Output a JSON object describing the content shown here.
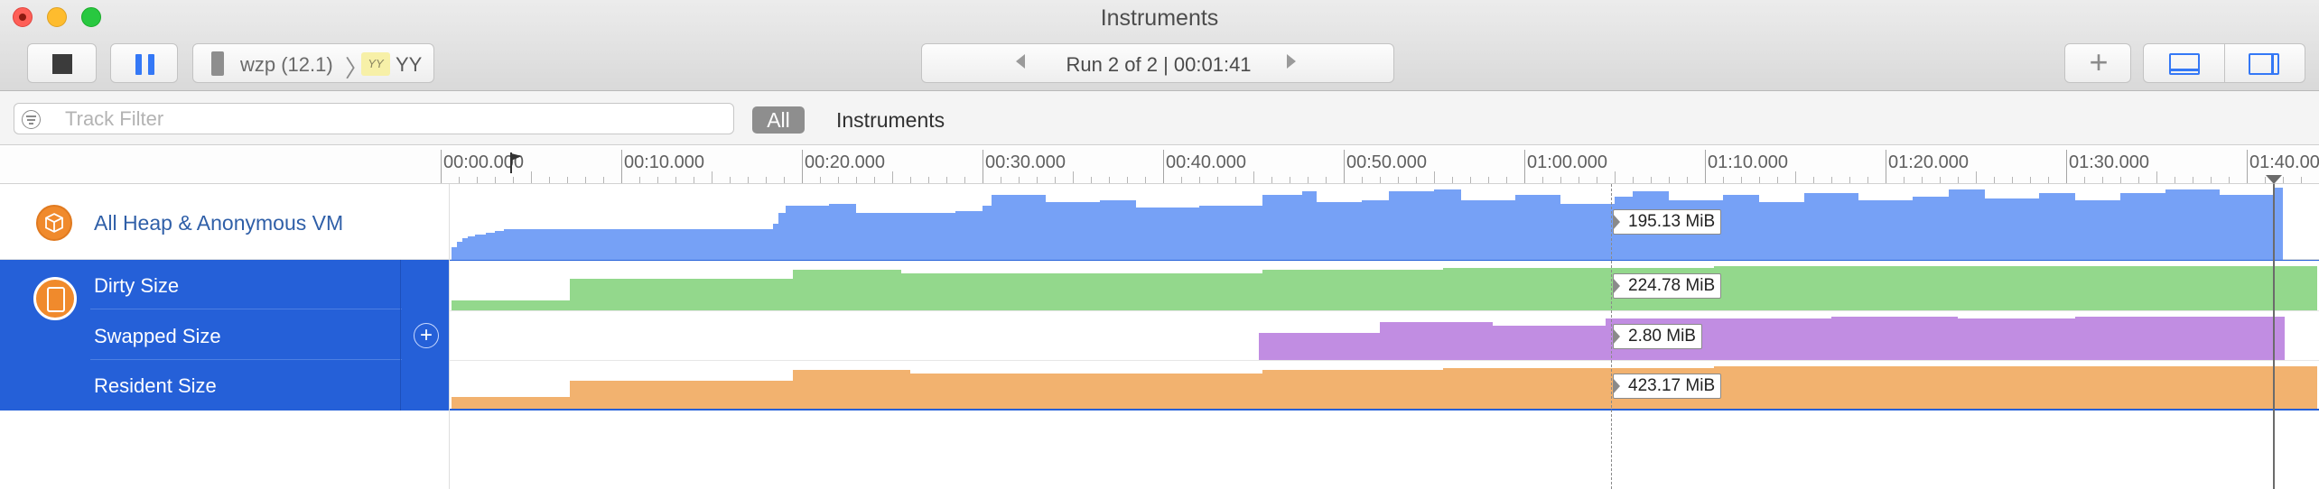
{
  "window": {
    "title": "Instruments"
  },
  "toolbar": {
    "target": {
      "device": "wzp (12.1)",
      "separator": "〉",
      "app_badge": "YY",
      "app": "YY"
    },
    "run": {
      "label": "Run 2 of 2  |  00:01:41"
    },
    "add_label": "+"
  },
  "filterbar": {
    "placeholder": "Track Filter",
    "scopes": {
      "all": "All",
      "instruments": "Instruments"
    }
  },
  "ruler": {
    "labels": [
      "00:00.000",
      "00:10.000",
      "00:20.000",
      "00:30.000",
      "00:40.000",
      "00:50.000",
      "01:00.000",
      "01:10.000",
      "01:20.000",
      "01:30.000",
      "01:40.000"
    ]
  },
  "tracks": {
    "heap": {
      "label": "All Heap & Anonymous VM",
      "value": "195.13 MiB",
      "color": "#76a1f6"
    },
    "memory": {
      "dirty": {
        "label": "Dirty Size",
        "value": "224.78 MiB",
        "color": "#93d88c"
      },
      "swapped": {
        "label": "Swapped Size",
        "value": "2.80 MiB",
        "color": "#c18de2"
      },
      "resident": {
        "label": "Resident Size",
        "value": "423.17 MiB",
        "color": "#f2b26f"
      }
    }
  },
  "icons": [
    "close-icon",
    "minimize-icon",
    "zoom-icon",
    "stop-icon",
    "pause-icon",
    "device-icon",
    "chevron-left-icon",
    "chevron-right-icon",
    "plus-icon",
    "bottom-pane-icon",
    "right-pane-icon",
    "filter-icon",
    "flag-icon",
    "heap-icon",
    "memory-icon",
    "add-track-icon"
  ]
}
